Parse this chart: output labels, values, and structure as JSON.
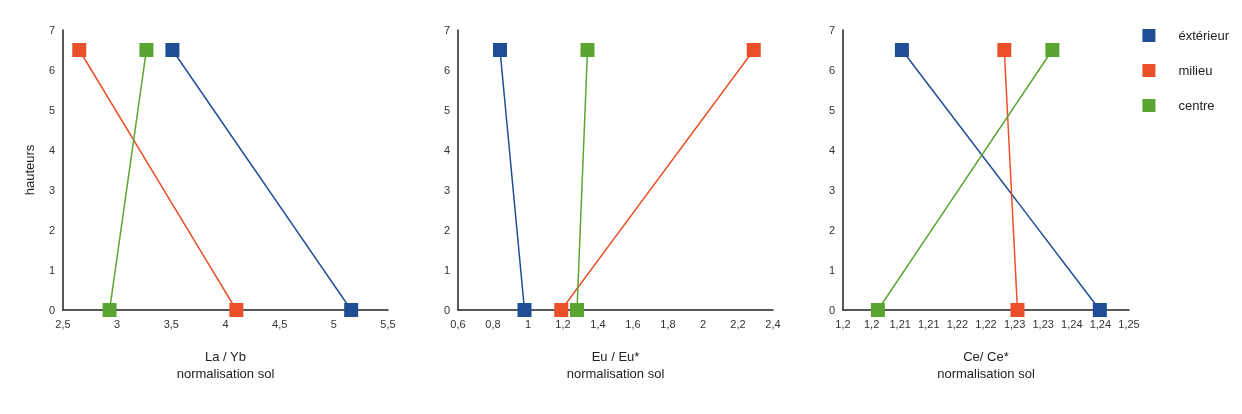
{
  "chart_data": [
    {
      "type": "line",
      "xlabel": "La / Yb\nnormalisation sol",
      "ylabel": "hauteurs",
      "xlim": [
        2.5,
        5.5
      ],
      "xticks": [
        {
          "value": 2.5,
          "label": "2,5"
        },
        3,
        {
          "value": 3.5,
          "label": "3,5"
        },
        4,
        {
          "value": 4.5,
          "label": "4,5"
        },
        5,
        {
          "value": 5.5,
          "label": "5,5"
        }
      ],
      "ylim": [
        0,
        7
      ],
      "yticks": [
        0,
        1,
        2,
        3,
        4,
        5,
        6,
        7
      ],
      "grid": false,
      "legend": false,
      "marker": "square",
      "line_style": "solid",
      "series": [
        {
          "color": "#1f4e96",
          "x": [
            3.51,
            5.16
          ],
          "values": [
            6.5,
            0
          ]
        },
        {
          "color": "#e9502a",
          "x": [
            2.65,
            4.1
          ],
          "values": [
            6.5,
            0
          ]
        },
        {
          "color": "#5aa532",
          "x": [
            3.27,
            2.93
          ],
          "values": [
            6.5,
            0
          ]
        }
      ]
    },
    {
      "type": "line",
      "xlabel": "Eu / Eu*\nnormalisation sol",
      "xlim": [
        0.6,
        2.4
      ],
      "xticks": [
        {
          "value": 0.6,
          "label": "0,6"
        },
        {
          "value": 0.8,
          "label": "0,8"
        },
        1,
        {
          "value": 1.2,
          "label": "1,2"
        },
        {
          "value": 1.4,
          "label": "1,4"
        },
        {
          "value": 1.6,
          "label": "1,6"
        },
        {
          "value": 1.8,
          "label": "1,8"
        },
        2,
        {
          "value": 2.2,
          "label": "2,2"
        },
        {
          "value": 2.4,
          "label": "2,4"
        }
      ],
      "ylim": [
        0,
        7
      ],
      "yticks": [
        0,
        1,
        2,
        3,
        4,
        5,
        6,
        7
      ],
      "grid": false,
      "legend": false,
      "marker": "square",
      "line_style": "solid",
      "series": [
        {
          "color": "#1f4e96",
          "x": [
            0.84,
            0.98
          ],
          "values": [
            6.5,
            0
          ]
        },
        {
          "color": "#e9502a",
          "x": [
            2.29,
            1.19
          ],
          "values": [
            6.5,
            0
          ]
        },
        {
          "color": "#5aa532",
          "x": [
            1.34,
            1.28
          ],
          "values": [
            6.5,
            0
          ]
        }
      ]
    },
    {
      "type": "line",
      "xlabel": "Ce/ Ce*\nnormalisation sol",
      "xlim": [
        1.2,
        1.25
      ],
      "xticks": [
        {
          "value": 1.2,
          "label": "1,2"
        },
        {
          "value": 1.205,
          "label": "1,2"
        },
        {
          "value": 1.21,
          "label": "1,21"
        },
        {
          "value": 1.215,
          "label": "1,21"
        },
        {
          "value": 1.22,
          "label": "1,22"
        },
        {
          "value": 1.225,
          "label": "1,22"
        },
        {
          "value": 1.23,
          "label": "1,23"
        },
        {
          "value": 1.235,
          "label": "1,23"
        },
        {
          "value": 1.24,
          "label": "1,24"
        },
        {
          "value": 1.245,
          "label": "1,24"
        },
        {
          "value": 1.25,
          "label": "1,25"
        }
      ],
      "ylim": [
        0,
        7
      ],
      "yticks": [
        0,
        1,
        2,
        3,
        4,
        5,
        6,
        7
      ],
      "grid": false,
      "legend": "top right",
      "marker": "square",
      "line_style": "solid",
      "series": [
        {
          "name": "éxtérieur",
          "color": "#1f4e96",
          "x": [
            1.2103,
            1.2449
          ],
          "values": [
            6.5,
            0
          ]
        },
        {
          "name": "milieu",
          "color": "#e9502a",
          "x": [
            1.2282,
            1.2305
          ],
          "values": [
            6.5,
            0
          ]
        },
        {
          "name": "centre",
          "color": "#5aa532",
          "x": [
            1.2366,
            1.2061
          ],
          "values": [
            6.5,
            0
          ]
        }
      ]
    }
  ]
}
